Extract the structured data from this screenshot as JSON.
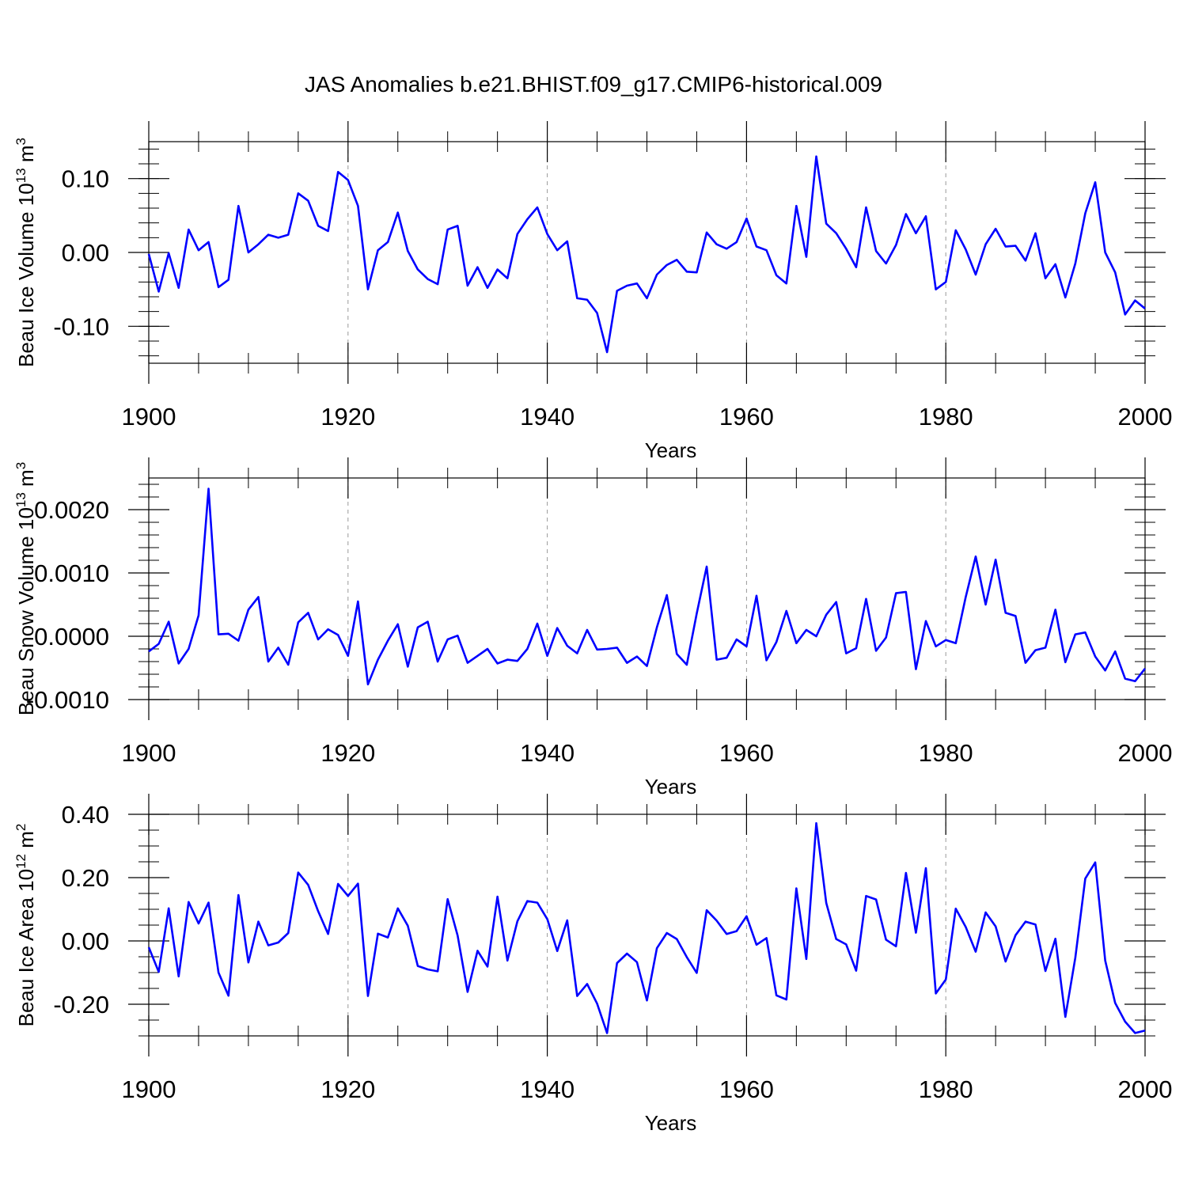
{
  "title": "JAS Anomalies b.e21.BHIST.f09_g17.CMIP6-historical.009",
  "colors": {
    "line": "#0000ff",
    "axis": "#000000",
    "grid": "#999999",
    "background": "#ffffff"
  },
  "chart_data": [
    {
      "type": "line",
      "ylabel_text": "Beau Ice Volume 10",
      "ylabel_sup": "13",
      "ylabel_unit": " m",
      "ylabel_unit_sup": "3",
      "xlabel": "Years",
      "xlim": [
        1900,
        2000
      ],
      "ylim": [
        -0.15,
        0.15
      ],
      "x_ticks": [
        "1900",
        "1920",
        "1940",
        "1960",
        "1980",
        "2000"
      ],
      "x_tick_values": [
        1900,
        1920,
        1940,
        1960,
        1980,
        2000
      ],
      "y_ticks": [
        "0.10",
        "0.00",
        "-0.10"
      ],
      "y_tick_values": [
        0.1,
        0.0,
        -0.1
      ],
      "y_minor_step": 0.02,
      "grid": "dashed vertical at major x ticks",
      "series": [
        {
          "name": "Beau Ice Volume",
          "x_start": 1900,
          "values": [
            -0.002,
            -0.053,
            -0.001,
            -0.048,
            0.031,
            0.003,
            0.014,
            -0.047,
            -0.037,
            0.063,
            0.0,
            0.011,
            0.024,
            0.02,
            0.024,
            0.08,
            0.07,
            0.036,
            0.029,
            0.109,
            0.098,
            0.063,
            -0.05,
            0.003,
            0.014,
            0.054,
            0.002,
            -0.023,
            -0.036,
            -0.043,
            0.031,
            0.036,
            -0.045,
            -0.02,
            -0.048,
            -0.023,
            -0.035,
            0.025,
            0.045,
            0.061,
            0.025,
            0.003,
            0.015,
            -0.062,
            -0.064,
            -0.082,
            -0.135,
            -0.052,
            -0.045,
            -0.042,
            -0.062,
            -0.03,
            -0.017,
            -0.01,
            -0.026,
            -0.027,
            0.027,
            0.011,
            0.005,
            0.014,
            0.046,
            0.008,
            0.003,
            -0.031,
            -0.042,
            0.063,
            -0.006,
            0.13,
            0.039,
            0.026,
            0.005,
            -0.02,
            0.061,
            0.002,
            -0.015,
            0.01,
            0.052,
            0.026,
            0.049,
            -0.05,
            -0.04,
            0.03,
            0.004,
            -0.03,
            0.011,
            0.032,
            0.008,
            0.009,
            -0.011,
            0.026,
            -0.035,
            -0.016,
            -0.061,
            -0.015,
            0.053,
            0.095,
            0.0,
            -0.027,
            -0.084,
            -0.065,
            -0.076
          ]
        }
      ]
    },
    {
      "type": "line",
      "ylabel_text": "Beau Snow Volume 10",
      "ylabel_sup": "13",
      "ylabel_unit": " m",
      "ylabel_unit_sup": "3",
      "xlabel": "Years",
      "xlim": [
        1900,
        2000
      ],
      "ylim": [
        -0.001,
        0.0025
      ],
      "x_ticks": [
        "1900",
        "1920",
        "1940",
        "1960",
        "1980",
        "2000"
      ],
      "x_tick_values": [
        1900,
        1920,
        1940,
        1960,
        1980,
        2000
      ],
      "y_ticks": [
        "0.0020",
        "0.0010",
        "0.0000",
        "-0.0010"
      ],
      "y_tick_values": [
        0.002,
        0.001,
        0.0,
        -0.001
      ],
      "y_minor_step": 0.0002,
      "grid": "dashed vertical at major x ticks",
      "series": [
        {
          "name": "Beau Snow Volume",
          "x_start": 1900,
          "values": [
            -0.00024,
            -0.00012,
            0.00023,
            -0.00043,
            -0.0002,
            0.00033,
            0.00233,
            3e-05,
            4e-05,
            -7e-05,
            0.00042,
            0.00062,
            -0.0004,
            -0.00018,
            -0.00045,
            0.00022,
            0.00037,
            -5e-05,
            0.00011,
            2e-05,
            -0.00031,
            0.00055,
            -0.00076,
            -0.00037,
            -7e-05,
            0.00019,
            -0.00048,
            0.00014,
            0.00023,
            -0.0004,
            -5e-05,
            1e-05,
            -0.00042,
            -0.00031,
            -0.0002,
            -0.00043,
            -0.00037,
            -0.00039,
            -0.0002,
            0.0002,
            -0.00031,
            0.00013,
            -0.00015,
            -0.00027,
            0.0001,
            -0.00021,
            -0.0002,
            -0.00018,
            -0.00042,
            -0.00032,
            -0.00047,
            0.00014,
            0.00065,
            -0.00028,
            -0.00045,
            0.00036,
            0.0011,
            -0.00037,
            -0.00034,
            -5e-05,
            -0.00016,
            0.00064,
            -0.00038,
            -9e-05,
            0.0004,
            -0.00011,
            0.0001,
            0.0,
            0.00034,
            0.00054,
            -0.00027,
            -0.00019,
            0.00059,
            -0.00023,
            -2e-05,
            0.00068,
            0.0007,
            -0.00052,
            0.00024,
            -0.00016,
            -6e-05,
            -0.00011,
            0.00062,
            0.00126,
            0.0005,
            0.00121,
            0.00037,
            0.00032,
            -0.00042,
            -0.00022,
            -0.00018,
            0.00042,
            -0.00041,
            3e-05,
            6e-05,
            -0.00032,
            -0.00054,
            -0.00024,
            -0.00067,
            -0.00071,
            -0.00051
          ]
        }
      ]
    },
    {
      "type": "line",
      "ylabel_text": "Beau Ice Area 10",
      "ylabel_sup": "12",
      "ylabel_unit": " m",
      "ylabel_unit_sup": "2",
      "xlabel": "Years",
      "xlim": [
        1900,
        2000
      ],
      "ylim": [
        -0.3,
        0.4
      ],
      "x_ticks": [
        "1900",
        "1920",
        "1940",
        "1960",
        "1980",
        "2000"
      ],
      "x_tick_values": [
        1900,
        1920,
        1940,
        1960,
        1980,
        2000
      ],
      "y_ticks": [
        "0.40",
        "0.20",
        "0.00",
        "-0.20"
      ],
      "y_tick_values": [
        0.4,
        0.2,
        0.0,
        -0.2
      ],
      "y_minor_step": 0.05,
      "grid": "dashed vertical at major x ticks",
      "series": [
        {
          "name": "Beau Ice Area",
          "x_start": 1900,
          "values": [
            -0.02,
            -0.098,
            0.103,
            -0.112,
            0.123,
            0.055,
            0.121,
            -0.1,
            -0.173,
            0.145,
            -0.068,
            0.061,
            -0.014,
            -0.005,
            0.025,
            0.216,
            0.177,
            0.094,
            0.022,
            0.18,
            0.142,
            0.181,
            -0.174,
            0.023,
            0.011,
            0.103,
            0.048,
            -0.079,
            -0.09,
            -0.096,
            0.132,
            0.017,
            -0.161,
            -0.031,
            -0.081,
            0.14,
            -0.062,
            0.062,
            0.126,
            0.121,
            0.069,
            -0.032,
            0.065,
            -0.174,
            -0.136,
            -0.198,
            -0.291,
            -0.07,
            -0.04,
            -0.067,
            -0.188,
            -0.023,
            0.025,
            0.006,
            -0.051,
            -0.101,
            0.097,
            0.064,
            0.022,
            0.031,
            0.078,
            -0.012,
            0.009,
            -0.172,
            -0.185,
            0.166,
            -0.057,
            0.372,
            0.12,
            0.006,
            -0.011,
            -0.094,
            0.142,
            0.131,
            0.004,
            -0.017,
            0.215,
            0.026,
            0.23,
            -0.166,
            -0.122,
            0.102,
            0.044,
            -0.034,
            0.09,
            0.046,
            -0.065,
            0.018,
            0.061,
            0.052,
            -0.095,
            0.007,
            -0.24,
            -0.053,
            0.197,
            0.248,
            -0.062,
            -0.196,
            -0.255,
            -0.291,
            -0.283
          ]
        }
      ]
    }
  ]
}
